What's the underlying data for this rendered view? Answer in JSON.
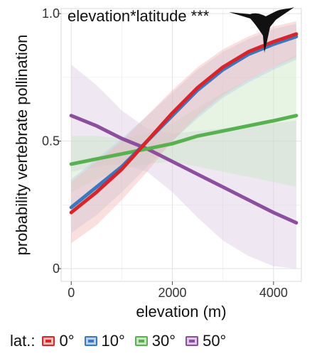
{
  "chart_data": {
    "type": "line",
    "title": "elevation*latitude ***",
    "xlabel": "elevation (m)",
    "ylabel": "probability vertebrate pollination",
    "xlim": [
      -200,
      4550
    ],
    "ylim": [
      -0.05,
      1.02
    ],
    "x_ticks": [
      0,
      2000,
      4000
    ],
    "x_tick_labels": [
      "0",
      "2000",
      "4000"
    ],
    "y_ticks": [
      0,
      0.5,
      1.0
    ],
    "y_tick_labels": [
      "0",
      "0.5",
      "1.0"
    ],
    "grid": true,
    "legend_position": "bottom",
    "legend_title": "lat.:",
    "x": [
      0,
      500,
      1000,
      1500,
      2000,
      2500,
      3000,
      3500,
      4000,
      4450
    ],
    "series": [
      {
        "name": "0°",
        "color": "#d7262b",
        "fill": "#f2b9b5",
        "values": [
          0.22,
          0.3,
          0.39,
          0.5,
          0.61,
          0.71,
          0.79,
          0.85,
          0.89,
          0.92
        ],
        "lower": [
          0.1,
          0.17,
          0.27,
          0.38,
          0.5,
          0.6,
          0.68,
          0.74,
          0.79,
          0.83
        ],
        "upper": [
          0.34,
          0.42,
          0.5,
          0.6,
          0.7,
          0.79,
          0.86,
          0.91,
          0.95,
          0.97
        ]
      },
      {
        "name": "10°",
        "color": "#3a78c0",
        "fill": "#b9cfe8",
        "values": [
          0.24,
          0.32,
          0.4,
          0.5,
          0.6,
          0.7,
          0.78,
          0.84,
          0.88,
          0.91
        ],
        "lower": [
          0.14,
          0.21,
          0.3,
          0.4,
          0.5,
          0.59,
          0.67,
          0.73,
          0.78,
          0.82
        ],
        "upper": [
          0.35,
          0.43,
          0.51,
          0.6,
          0.69,
          0.78,
          0.85,
          0.9,
          0.94,
          0.96
        ]
      },
      {
        "name": "30°",
        "color": "#58b14f",
        "fill": "#c9e6c3",
        "values": [
          0.41,
          0.43,
          0.45,
          0.47,
          0.49,
          0.52,
          0.54,
          0.56,
          0.58,
          0.6
        ],
        "lower": [
          0.3,
          0.35,
          0.39,
          0.41,
          0.42,
          0.4,
          0.38,
          0.36,
          0.34,
          0.32
        ],
        "upper": [
          0.52,
          0.52,
          0.51,
          0.53,
          0.57,
          0.63,
          0.69,
          0.74,
          0.79,
          0.84
        ]
      },
      {
        "name": "50°",
        "color": "#8c4f9e",
        "fill": "#dcc9e3",
        "values": [
          0.6,
          0.56,
          0.51,
          0.47,
          0.42,
          0.37,
          0.32,
          0.27,
          0.22,
          0.18
        ],
        "lower": [
          0.38,
          0.4,
          0.41,
          0.38,
          0.3,
          0.2,
          0.11,
          0.05,
          0.01,
          0.0
        ],
        "upper": [
          0.8,
          0.72,
          0.62,
          0.55,
          0.53,
          0.54,
          0.55,
          0.56,
          0.57,
          0.58
        ]
      }
    ]
  }
}
